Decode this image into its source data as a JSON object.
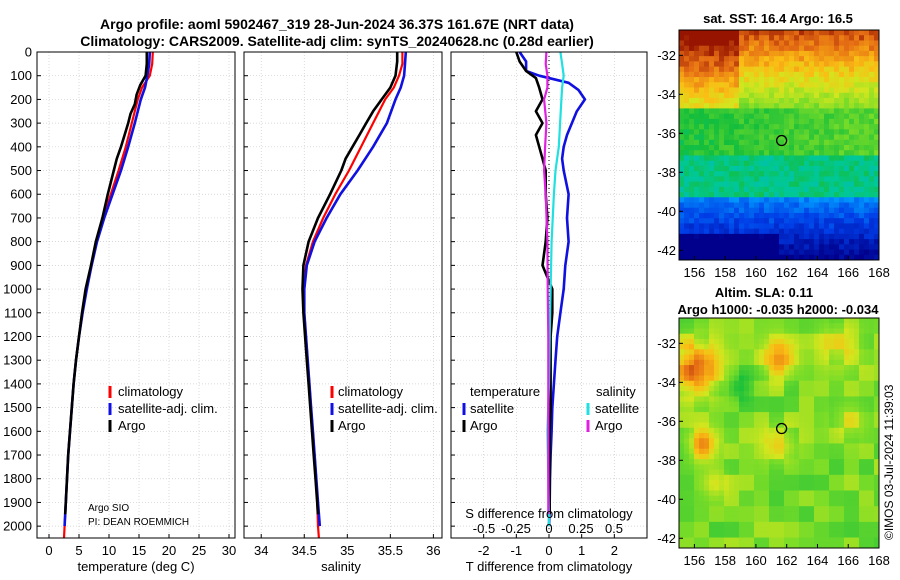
{
  "header": {
    "title_line1": "Argo profile: aoml 5902467_319 28-Jun-2024 36.37S 161.67E (NRT data)",
    "title_line2": "Climatology: CARS2009. Satellite-adj clim: synTS_20240628.nc (0.28d earlier)"
  },
  "colors": {
    "climatology": "#ff0000",
    "satellite_adj": "#1010e0",
    "argo": "#000000",
    "sat_salinity": "#20e0e0",
    "argo_salinity": "#e020e0",
    "grid": "#cccccc"
  },
  "depth_axis": {
    "range": [
      0,
      2050
    ],
    "ticks": [
      0,
      100,
      200,
      300,
      400,
      500,
      600,
      700,
      800,
      900,
      1000,
      1100,
      1200,
      1300,
      1400,
      1500,
      1600,
      1700,
      1800,
      1900,
      2000
    ]
  },
  "credits": {
    "line1": "Argo SIO",
    "line2": "PI: DEAN ROEMMICH"
  },
  "chart_data": [
    {
      "type": "line",
      "name": "temperature-profile",
      "xlabel": "temperature (deg C)",
      "xlim": [
        -2,
        31
      ],
      "xticks": [
        0,
        5,
        10,
        15,
        20,
        25,
        30
      ],
      "ylabel": "depth",
      "ylim": [
        0,
        2050
      ],
      "y_reversed": true,
      "grid": true,
      "legend": {
        "entries": [
          "climatology",
          "satellite-adj. clim.",
          "Argo"
        ]
      },
      "series": [
        {
          "name": "climatology",
          "color": "#ff0000",
          "depth": [
            0,
            50,
            100,
            150,
            200,
            300,
            400,
            500,
            600,
            700,
            800,
            900,
            1000,
            1100,
            1200,
            1300,
            1400,
            1500,
            1600,
            1700,
            1800,
            1900,
            2000,
            2050
          ],
          "values": [
            17.3,
            17.2,
            16.8,
            15.5,
            14.8,
            13.8,
            12.8,
            11.6,
            10.3,
            9.0,
            7.9,
            7.0,
            6.2,
            5.6,
            5.0,
            4.5,
            4.1,
            3.8,
            3.5,
            3.2,
            3.0,
            2.8,
            2.6,
            2.5
          ]
        },
        {
          "name": "satellite-adj. clim.",
          "color": "#1010e0",
          "depth": [
            0,
            50,
            100,
            150,
            200,
            300,
            400,
            500,
            600,
            700,
            800,
            900,
            1000,
            1100,
            1200,
            1300,
            1400,
            1500,
            1600,
            1700,
            1800,
            1900,
            2000
          ],
          "values": [
            16.8,
            16.7,
            16.4,
            16.0,
            15.3,
            14.3,
            13.2,
            12.0,
            10.6,
            9.2,
            8.0,
            7.1,
            6.3,
            5.6,
            5.0,
            4.5,
            4.1,
            3.8,
            3.5,
            3.2,
            3.0,
            2.8,
            2.6
          ]
        },
        {
          "name": "Argo",
          "color": "#000000",
          "depth": [
            0,
            50,
            100,
            140,
            180,
            220,
            260,
            300,
            350,
            400,
            450,
            500,
            600,
            700,
            800,
            900,
            1000,
            1100,
            1200,
            1300,
            1400,
            1500,
            1600,
            1700,
            1800,
            1900,
            1950
          ],
          "values": [
            16.3,
            16.3,
            16.1,
            15.2,
            14.6,
            14.3,
            13.6,
            13.2,
            12.6,
            12.0,
            11.3,
            10.8,
            9.8,
            8.9,
            7.8,
            7.0,
            6.1,
            5.5,
            5.0,
            4.5,
            4.1,
            3.8,
            3.5,
            3.2,
            3.0,
            2.8,
            2.7
          ]
        }
      ]
    },
    {
      "type": "line",
      "name": "salinity-profile",
      "xlabel": "salinity",
      "xlim": [
        33.8,
        36.1
      ],
      "xticks": [
        34,
        34.5,
        35,
        35.5,
        36
      ],
      "ylabel": "depth",
      "ylim": [
        0,
        2050
      ],
      "y_reversed": true,
      "grid": true,
      "legend": {
        "entries": [
          "climatology",
          "satellite-adj. clim.",
          "Argo"
        ]
      },
      "series": [
        {
          "name": "climatology",
          "color": "#ff0000",
          "depth": [
            0,
            50,
            100,
            150,
            200,
            300,
            400,
            500,
            600,
            700,
            800,
            900,
            1000,
            1100,
            1200,
            1300,
            1400,
            1500,
            1600,
            1700,
            1800,
            1900,
            2000,
            2050
          ],
          "values": [
            35.64,
            35.64,
            35.6,
            35.54,
            35.44,
            35.3,
            35.16,
            35.02,
            34.86,
            34.72,
            34.6,
            34.52,
            34.5,
            34.5,
            34.52,
            34.54,
            34.56,
            34.58,
            34.6,
            34.62,
            34.64,
            34.65,
            34.66,
            34.67
          ]
        },
        {
          "name": "satellite-adj. clim.",
          "color": "#1010e0",
          "depth": [
            0,
            50,
            100,
            150,
            200,
            300,
            400,
            500,
            600,
            700,
            800,
            900,
            1000,
            1100,
            1200,
            1300,
            1400,
            1500,
            1600,
            1700,
            1800,
            1900,
            2000
          ],
          "values": [
            35.68,
            35.67,
            35.66,
            35.62,
            35.56,
            35.46,
            35.3,
            35.12,
            34.92,
            34.76,
            34.62,
            34.53,
            34.5,
            34.5,
            34.52,
            34.54,
            34.56,
            34.58,
            34.6,
            34.62,
            34.64,
            34.66,
            34.68
          ]
        },
        {
          "name": "Argo",
          "color": "#000000",
          "depth": [
            0,
            40,
            100,
            150,
            200,
            250,
            300,
            350,
            400,
            450,
            500,
            600,
            700,
            800,
            900,
            1000,
            1100,
            1200,
            1300,
            1400,
            1500,
            1600,
            1700,
            1800,
            1900,
            1950
          ],
          "values": [
            35.58,
            35.58,
            35.56,
            35.5,
            35.4,
            35.3,
            35.22,
            35.14,
            35.06,
            34.98,
            34.93,
            34.8,
            34.66,
            34.55,
            34.49,
            34.48,
            34.49,
            34.51,
            34.53,
            34.55,
            34.57,
            34.59,
            34.61,
            34.63,
            34.65,
            34.66
          ]
        }
      ]
    },
    {
      "type": "line",
      "name": "difference-profile",
      "xlabel": "T difference from climatology",
      "xlabel_top": "S difference from climatology",
      "xlim": [
        -3,
        3
      ],
      "xticks": [
        -2,
        -1,
        0,
        1,
        2
      ],
      "xticks_salinity": [
        "-0.5",
        "-0.25",
        "0",
        "0.25",
        "0.5"
      ],
      "ylim": [
        0,
        2050
      ],
      "y_reversed": true,
      "grid": true,
      "legend": {
        "temperature_title": "temperature",
        "salinity_title": "salinity",
        "entries": [
          "satellite",
          "Argo",
          "satellite",
          "Argo"
        ]
      },
      "series": [
        {
          "name": "temperature satellite",
          "color": "#1010e0",
          "depth": [
            0,
            40,
            80,
            100,
            130,
            160,
            200,
            250,
            300,
            350,
            400,
            450,
            500,
            600,
            700,
            800,
            900,
            1000,
            1100,
            1200,
            1300,
            1400,
            1500,
            1600,
            1700,
            1800,
            1900,
            2000
          ],
          "values": [
            -0.9,
            -0.7,
            -0.7,
            -0.3,
            0.6,
            0.9,
            1.1,
            0.85,
            0.7,
            0.55,
            0.45,
            0.4,
            0.45,
            0.6,
            0.55,
            0.6,
            0.5,
            0.45,
            0.35,
            0.25,
            0.2,
            0.15,
            0.1,
            0.08,
            0.05,
            0.03,
            0.02,
            0.0
          ]
        },
        {
          "name": "temperature Argo",
          "color": "#000000",
          "depth": [
            0,
            40,
            80,
            110,
            150,
            200,
            250,
            300,
            350,
            400,
            450,
            500,
            600,
            700,
            800,
            900,
            1000,
            1100,
            1200,
            1300,
            1400,
            1500,
            1600,
            1700,
            1800,
            1900,
            1950
          ],
          "values": [
            -1.0,
            -0.9,
            -0.7,
            -0.4,
            -0.3,
            -0.2,
            -0.4,
            -0.2,
            -0.4,
            -0.3,
            -0.2,
            -0.1,
            -0.1,
            -0.05,
            -0.1,
            -0.2,
            0.1,
            0.1,
            0.05,
            0.05,
            0.05,
            0.05,
            0.02,
            0.03,
            0.02,
            0.02,
            0.02
          ]
        },
        {
          "name": "salinity satellite",
          "color": "#20e0e0",
          "depth": [
            0,
            50,
            100,
            150,
            200,
            300,
            400,
            500,
            600,
            800,
            1000,
            1200,
            1400,
            1600,
            1800,
            2000
          ],
          "values": [
            0.35,
            0.4,
            0.45,
            0.4,
            0.38,
            0.34,
            0.3,
            0.2,
            0.15,
            0.08,
            0.05,
            0.02,
            0.0,
            -0.05,
            -0.02,
            0.0
          ]
        },
        {
          "name": "salinity Argo",
          "color": "#e020e0",
          "depth": [
            0,
            50,
            100,
            150,
            200,
            300,
            400,
            500,
            600,
            800,
            1000,
            1200,
            1400,
            1600,
            1800,
            1950
          ],
          "values": [
            -0.08,
            -0.1,
            -0.05,
            -0.05,
            -0.15,
            -0.08,
            -0.12,
            -0.15,
            -0.1,
            -0.05,
            -0.04,
            -0.02,
            -0.02,
            -0.02,
            -0.02,
            -0.02
          ]
        }
      ]
    },
    {
      "type": "heatmap",
      "name": "sst-map",
      "title": "sat. SST: 16.4 Argo: 16.5",
      "xlim": [
        155,
        168
      ],
      "ylim": [
        -42.5,
        -30.7
      ],
      "xticks": [
        156,
        158,
        160,
        162,
        164,
        166,
        168
      ],
      "yticks": [
        -32,
        -34,
        -36,
        -38,
        -40,
        -42
      ],
      "marker": {
        "lon": 161.67,
        "lat": -36.37
      }
    },
    {
      "type": "heatmap",
      "name": "sla-map",
      "title_line1": "Altim. SLA: 0.11",
      "title_line2": "Argo h1000: -0.035 h2000: -0.034",
      "xlim": [
        155,
        168
      ],
      "ylim": [
        -42.5,
        -30.7
      ],
      "xticks": [
        156,
        158,
        160,
        162,
        164,
        166,
        168
      ],
      "yticks": [
        -32,
        -34,
        -36,
        -38,
        -40,
        -42
      ],
      "marker": {
        "lon": 161.67,
        "lat": -36.37
      }
    }
  ],
  "footer": {
    "copyright": "©IMOS 03-Jul-2024 11:39:03"
  }
}
